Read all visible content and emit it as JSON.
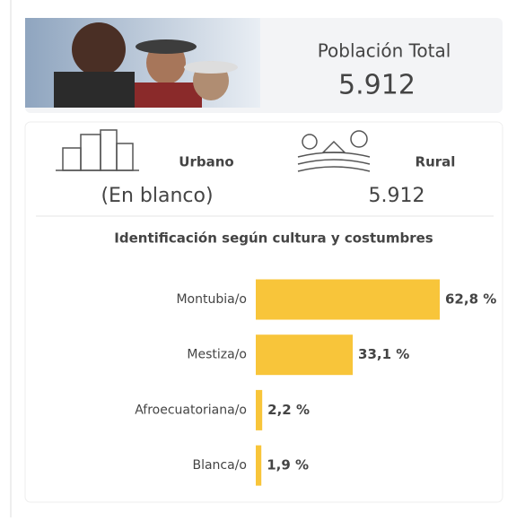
{
  "header": {
    "title": "Población Total",
    "value": "5.912"
  },
  "areas": [
    {
      "label": "Urbano",
      "value": "(En blanco)"
    },
    {
      "label": "Rural",
      "value": "5.912"
    }
  ],
  "chart_data": {
    "type": "bar",
    "orientation": "horizontal",
    "title": "Identificación según cultura y costumbres",
    "categories": [
      "Montubia/o",
      "Mestiza/o",
      "Afroecuatoriana/o",
      "Blanca/o"
    ],
    "values": [
      62.8,
      33.1,
      2.2,
      1.9
    ],
    "value_labels": [
      "62,8 %",
      "33,1 %",
      "2,2 %",
      "1,9 %"
    ],
    "color": "#f8c53a"
  }
}
